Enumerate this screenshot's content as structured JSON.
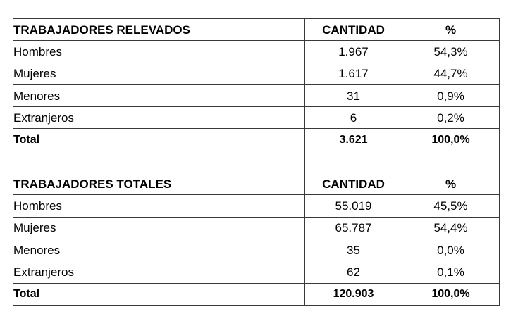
{
  "tables": [
    {
      "header": {
        "label": "TRABAJADORES RELEVADOS",
        "quantity": "CANTIDAD",
        "percent": "%"
      },
      "rows": [
        {
          "label": "Hombres",
          "quantity": "1.967",
          "percent": "54,3%"
        },
        {
          "label": "Mujeres",
          "quantity": "1.617",
          "percent": "44,7%"
        },
        {
          "label": "Menores",
          "quantity": "31",
          "percent": "0,9%"
        },
        {
          "label": "Extranjeros",
          "quantity": "6",
          "percent": "0,2%"
        }
      ],
      "total": {
        "label": "Total",
        "quantity": "3.621",
        "percent": "100,0%"
      }
    },
    {
      "header": {
        "label": "TRABAJADORES TOTALES",
        "quantity": "CANTIDAD",
        "percent": "%"
      },
      "rows": [
        {
          "label": "Hombres",
          "quantity": "55.019",
          "percent": "45,5%"
        },
        {
          "label": "Mujeres",
          "quantity": "65.787",
          "percent": "54,4%"
        },
        {
          "label": "Menores",
          "quantity": "35",
          "percent": "0,0%"
        },
        {
          "label": "Extranjeros",
          "quantity": "62",
          "percent": "0,1%"
        }
      ],
      "total": {
        "label": "Total",
        "quantity": "120.903",
        "percent": "100,0%"
      }
    }
  ]
}
